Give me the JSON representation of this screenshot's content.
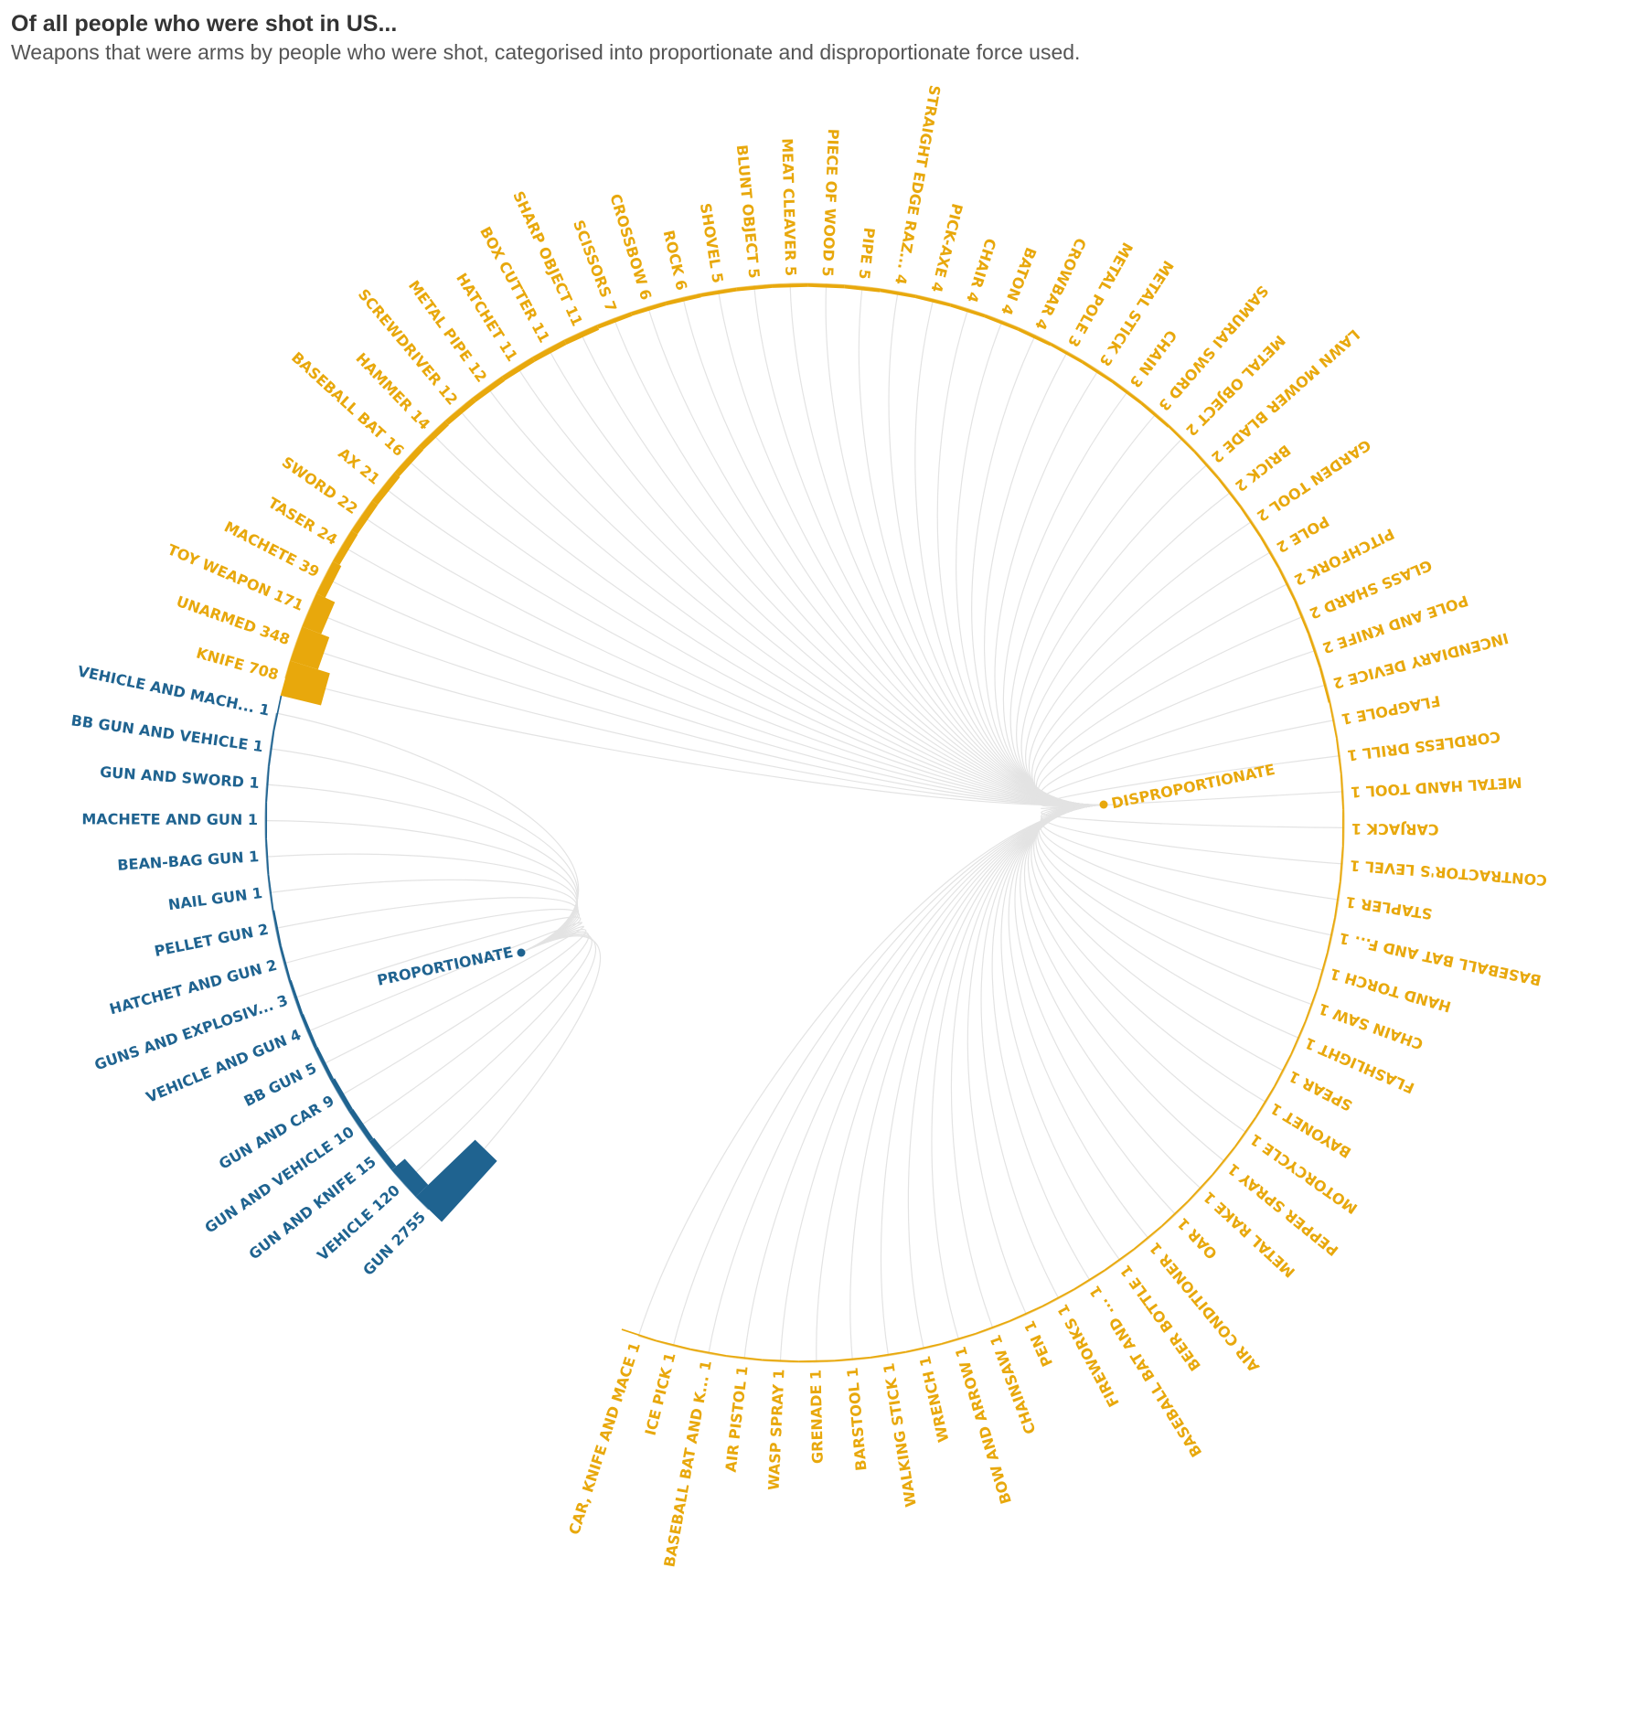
{
  "title": "Of all people who were shot in US...",
  "subtitle": "Weapons that were arms by people who were shot, categorised into proportionate and disproportionate force used.",
  "colors": {
    "proportionate": "#1f6390",
    "disproportionate": "#e8a80c",
    "link": "#e3e3e3"
  },
  "chart_data": {
    "type": "radial-dendrogram",
    "groups": [
      {
        "name": "PROPORTIONATE",
        "color": "#1f6390",
        "items": [
          {
            "label": "GUN",
            "value": 2755
          },
          {
            "label": "VEHICLE",
            "value": 120
          },
          {
            "label": "GUN AND KNIFE",
            "value": 15
          },
          {
            "label": "GUN AND VEHICLE",
            "value": 10
          },
          {
            "label": "GUN AND CAR",
            "value": 9
          },
          {
            "label": "BB GUN",
            "value": 5
          },
          {
            "label": "VEHICLE AND GUN",
            "value": 4
          },
          {
            "label": "GUNS AND EXPLOSIV...",
            "value": 3
          },
          {
            "label": "HATCHET AND GUN",
            "value": 2
          },
          {
            "label": "PELLET GUN",
            "value": 2
          },
          {
            "label": "NAIL GUN",
            "value": 1
          },
          {
            "label": "BEAN-BAG GUN",
            "value": 1
          },
          {
            "label": "MACHETE AND GUN",
            "value": 1
          },
          {
            "label": "GUN AND SWORD",
            "value": 1
          },
          {
            "label": "BB GUN AND VEHICLE",
            "value": 1
          },
          {
            "label": "VEHICLE AND MACH...",
            "value": 1
          }
        ]
      },
      {
        "name": "DISPROPORTIONATE",
        "color": "#e8a80c",
        "items": [
          {
            "label": "KNIFE",
            "value": 708
          },
          {
            "label": "UNARMED",
            "value": 348
          },
          {
            "label": "TOY WEAPON",
            "value": 171
          },
          {
            "label": "MACHETE",
            "value": 39
          },
          {
            "label": "TASER",
            "value": 24
          },
          {
            "label": "SWORD",
            "value": 22
          },
          {
            "label": "AX",
            "value": 21
          },
          {
            "label": "BASEBALL BAT",
            "value": 16
          },
          {
            "label": "HAMMER",
            "value": 14
          },
          {
            "label": "SCREWDRIVER",
            "value": 12
          },
          {
            "label": "METAL PIPE",
            "value": 12
          },
          {
            "label": "HATCHET",
            "value": 11
          },
          {
            "label": "BOX CUTTER",
            "value": 11
          },
          {
            "label": "SHARP OBJECT",
            "value": 11
          },
          {
            "label": "SCISSORS",
            "value": 7
          },
          {
            "label": "CROSSBOW",
            "value": 6
          },
          {
            "label": "ROCK",
            "value": 6
          },
          {
            "label": "SHOVEL",
            "value": 5
          },
          {
            "label": "BLUNT OBJECT",
            "value": 5
          },
          {
            "label": "MEAT CLEAVER",
            "value": 5
          },
          {
            "label": "PIECE OF WOOD",
            "value": 5
          },
          {
            "label": "PIPE",
            "value": 5
          },
          {
            "label": "STRAIGHT EDGE RAZ...",
            "value": 4
          },
          {
            "label": "PICK-AXE",
            "value": 4
          },
          {
            "label": "CHAIR",
            "value": 4
          },
          {
            "label": "BATON",
            "value": 4
          },
          {
            "label": "CROWBAR",
            "value": 4
          },
          {
            "label": "METAL POLE",
            "value": 3
          },
          {
            "label": "METAL STICK",
            "value": 3
          },
          {
            "label": "CHAIN",
            "value": 3
          },
          {
            "label": "SAMURAI SWORD",
            "value": 3
          },
          {
            "label": "METAL OBJECT",
            "value": 2
          },
          {
            "label": "LAWN MOWER BLADE",
            "value": 2
          },
          {
            "label": "BRICK",
            "value": 2
          },
          {
            "label": "GARDEN TOOL",
            "value": 2
          },
          {
            "label": "POLE",
            "value": 2
          },
          {
            "label": "PITCHFORK",
            "value": 2
          },
          {
            "label": "GLASS SHARD",
            "value": 2
          },
          {
            "label": "POLE AND KNIFE",
            "value": 2
          },
          {
            "label": "INCENDIARY DEVICE",
            "value": 2
          },
          {
            "label": "FLAGPOLE",
            "value": 1
          },
          {
            "label": "CORDLESS DRILL",
            "value": 1
          },
          {
            "label": "METAL HAND TOOL",
            "value": 1
          },
          {
            "label": "CARJACK",
            "value": 1
          },
          {
            "label": "CONTRACTOR'S LEVEL",
            "value": 1
          },
          {
            "label": "STAPLER",
            "value": 1
          },
          {
            "label": "BASEBALL BAT AND F...",
            "value": 1
          },
          {
            "label": "HAND TORCH",
            "value": 1
          },
          {
            "label": "CHAIN SAW",
            "value": 1
          },
          {
            "label": "FLASHLIGHT",
            "value": 1
          },
          {
            "label": "SPEAR",
            "value": 1
          },
          {
            "label": "BAYONET",
            "value": 1
          },
          {
            "label": "MOTORCYCLE",
            "value": 1
          },
          {
            "label": "PEPPER SPRAY",
            "value": 1
          },
          {
            "label": "METAL RAKE",
            "value": 1
          },
          {
            "label": "OAR",
            "value": 1
          },
          {
            "label": "AIR CONDITIONER",
            "value": 1
          },
          {
            "label": "BEER BOTTLE",
            "value": 1
          },
          {
            "label": "BASEBALL BAT AND ...",
            "value": 1
          },
          {
            "label": "FIREWORKS",
            "value": 1
          },
          {
            "label": "PEN",
            "value": 1
          },
          {
            "label": "CHAINSAW",
            "value": 1
          },
          {
            "label": "BOW AND ARROW",
            "value": 1
          },
          {
            "label": "WRENCH",
            "value": 1
          },
          {
            "label": "WALKING STICK",
            "value": 1
          },
          {
            "label": "BARSTOOL",
            "value": 1
          },
          {
            "label": "GRENADE",
            "value": 1
          },
          {
            "label": "WASP SPRAY",
            "value": 1
          },
          {
            "label": "AIR PISTOL",
            "value": 1
          },
          {
            "label": "BASEBALL BAT AND K...",
            "value": 1
          },
          {
            "label": "ICE PICK",
            "value": 1
          },
          {
            "label": "CAR, KNIFE AND MACE",
            "value": 1
          }
        ]
      }
    ]
  }
}
